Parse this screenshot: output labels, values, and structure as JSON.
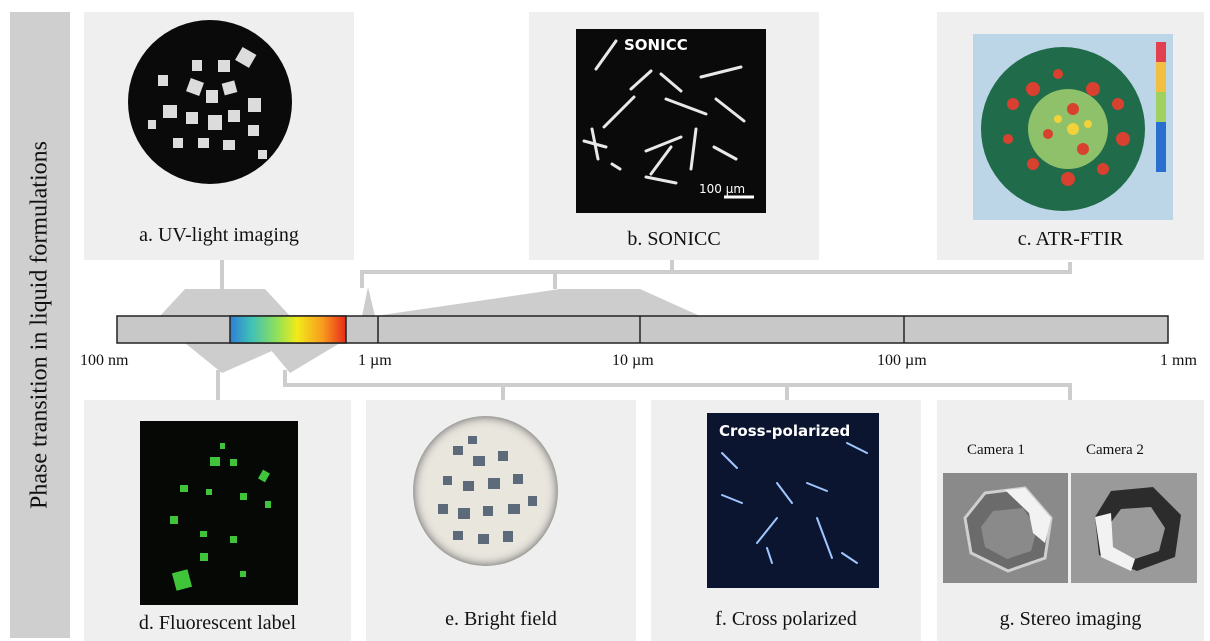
{
  "side_label": "Phase transition in liquid formulations",
  "scale": {
    "ticks": [
      {
        "label": "100 nm",
        "value": "1e-7"
      },
      {
        "label": "1 µm",
        "value": "1e-6"
      },
      {
        "label": "10 µm",
        "value": "1e-5"
      },
      {
        "label": "100 µm",
        "value": "1e-4"
      },
      {
        "label": "1 mm",
        "value": "1e-3"
      }
    ],
    "spectrum_colors": [
      "#2f7fd6",
      "#3fc0b8",
      "#8ee05a",
      "#f2ea1a",
      "#f89a1e",
      "#e82a1a"
    ],
    "bar_color": "#c8c8c8"
  },
  "panels": {
    "a": {
      "caption": "a. UV-light imaging"
    },
    "b": {
      "caption": "b. SONICC",
      "overlay": "SONICC",
      "scalebar": "100 µm"
    },
    "c": {
      "caption": "c. ATR-FTIR"
    },
    "d": {
      "caption": "d. Fluorescent label"
    },
    "e": {
      "caption": "e. Bright field"
    },
    "f": {
      "caption": "f. Cross polarized",
      "overlay": "Cross-polarized"
    },
    "g": {
      "caption": "g. Stereo imaging",
      "camera1": "Camera 1",
      "camera2": "Camera 2"
    }
  }
}
